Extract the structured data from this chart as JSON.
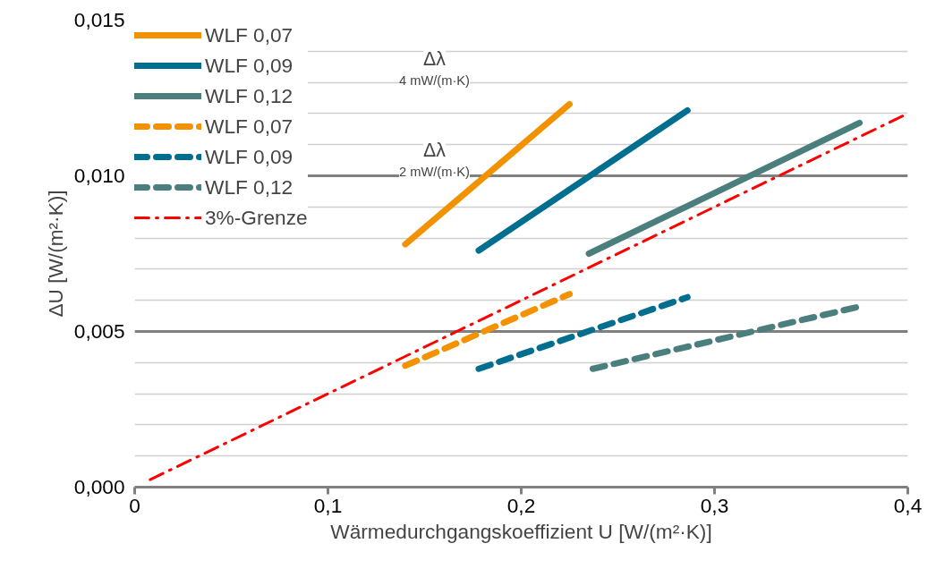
{
  "chart_data": {
    "type": "line",
    "xlabel": "Wärmedurchgangskoeffizient U [W/(m²·K)]",
    "ylabel": "ΔU [W/(m²·K)]",
    "series": [
      {
        "name": "WLF 0,07",
        "color": "#f39200",
        "line_style": "solid",
        "x": [
          0.14,
          0.225
        ],
        "values": [
          0.0078,
          0.0123
        ]
      },
      {
        "name": "WLF 0,09",
        "color": "#006f8f",
        "line_style": "solid",
        "x": [
          0.178,
          0.286
        ],
        "values": [
          0.0076,
          0.0121
        ]
      },
      {
        "name": "WLF 0,12",
        "color": "#4a7f7e",
        "line_style": "solid",
        "x": [
          0.235,
          0.375
        ],
        "values": [
          0.0075,
          0.0117
        ]
      },
      {
        "name": "WLF 0,07",
        "color": "#f39200",
        "line_style": "dashed",
        "x": [
          0.14,
          0.225
        ],
        "values": [
          0.0039,
          0.0062
        ]
      },
      {
        "name": "WLF 0,09",
        "color": "#006f8f",
        "line_style": "dashed",
        "x": [
          0.178,
          0.286
        ],
        "values": [
          0.0038,
          0.0061
        ]
      },
      {
        "name": "WLF 0,12",
        "color": "#4a7f7e",
        "line_style": "dashed",
        "x": [
          0.237,
          0.375
        ],
        "values": [
          0.0038,
          0.0058
        ]
      },
      {
        "name": "3%-Grenze",
        "color": "#ff0000",
        "line_style": "dashdot",
        "x": [
          0.008,
          0.4
        ],
        "values": [
          0.00024,
          0.012
        ]
      }
    ],
    "annotations": [
      "Δλ",
      "4 mW/(m·K)",
      "Δλ",
      "2 mW/(m·K)"
    ],
    "xlim": [
      0,
      0.4
    ],
    "xticks": [
      {
        "value": 0,
        "label": "0"
      },
      {
        "value": 0.1,
        "label": "0,1"
      },
      {
        "value": 0.2,
        "label": "0,2"
      },
      {
        "value": 0.3,
        "label": "0,3"
      },
      {
        "value": 0.4,
        "label": "0,4"
      }
    ],
    "ylim": [
      0,
      0.015
    ],
    "yticks": [
      {
        "value": 0,
        "label": "0,000"
      },
      {
        "value": 0.001,
        "label": null
      },
      {
        "value": 0.002,
        "label": null
      },
      {
        "value": 0.003,
        "label": null
      },
      {
        "value": 0.004,
        "label": null
      },
      {
        "value": 0.005,
        "label": "0,005"
      },
      {
        "value": 0.006,
        "label": null
      },
      {
        "value": 0.007,
        "label": null
      },
      {
        "value": 0.008,
        "label": null
      },
      {
        "value": 0.009,
        "label": null
      },
      {
        "value": 0.01,
        "label": "0,010"
      },
      {
        "value": 0.011,
        "label": null
      },
      {
        "value": 0.012,
        "label": null
      },
      {
        "value": 0.013,
        "label": null
      },
      {
        "value": 0.014,
        "label": null
      },
      {
        "value": 0.015,
        "label": "0,015"
      }
    ],
    "grid": "y",
    "legend": "top left"
  }
}
